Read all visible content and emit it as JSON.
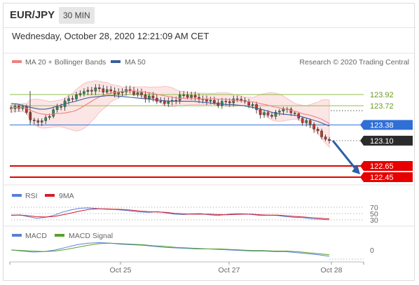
{
  "header": {
    "symbol": "EUR/JPY",
    "timeframe": "30 MIN"
  },
  "datetime": "Wednesday, October 28, 2020 12:21:09 AM CET",
  "credit": "Research © 2020 Trading Central",
  "colors": {
    "up": "#2e8b57",
    "down": "#c0392b",
    "ma20": "#f08080",
    "ma50": "#3a5d9c",
    "resistance_line": "#8fbf4a",
    "pivot": "#2f6fd6",
    "support": "#e60000",
    "arrow": "#2b5fa8",
    "rsi": "#5a7fd6",
    "rsi_ma": "#d81b2a",
    "macd": "#5a7fd6",
    "macd_signal": "#5aa02c"
  },
  "chart_data": [
    {
      "type": "candlestick",
      "panel": "price",
      "legend": [
        "MA 20 + Bollinger Bands",
        "MA 50"
      ],
      "ylim": [
        122.4,
        124.2
      ],
      "x": [
        "Oct 25",
        "Oct 27",
        "Oct 28"
      ],
      "close_path": [
        123.65,
        123.72,
        123.7,
        123.55,
        123.45,
        123.42,
        123.48,
        123.56,
        123.66,
        123.74,
        123.8,
        123.86,
        123.91,
        123.96,
        123.99,
        124.02,
        124.01,
        124.0,
        123.97,
        123.95,
        123.96,
        124.0,
        123.97,
        123.93,
        123.89,
        123.88,
        123.84,
        123.8,
        123.77,
        123.79,
        123.85,
        123.89,
        123.91,
        123.88,
        123.85,
        123.83,
        123.81,
        123.77,
        123.76,
        123.78,
        123.81,
        123.84,
        123.82,
        123.77,
        123.72,
        123.62,
        123.57,
        123.54,
        123.58,
        123.63,
        123.68,
        123.62,
        123.52,
        123.46,
        123.42,
        123.35,
        123.25,
        123.12,
        123.1
      ],
      "ma50_path": [
        123.76,
        123.75,
        123.73,
        123.7,
        123.68,
        123.66,
        123.66,
        123.68,
        123.71,
        123.74,
        123.77,
        123.79,
        123.82,
        123.85,
        123.87,
        123.88,
        123.89,
        123.9,
        123.9,
        123.89,
        123.88,
        123.87,
        123.86,
        123.85,
        123.84,
        123.83,
        123.82,
        123.81,
        123.8,
        123.8,
        123.8,
        123.8,
        123.8,
        123.79,
        123.78,
        123.77,
        123.76,
        123.75,
        123.74,
        123.74,
        123.73,
        123.72,
        123.7,
        123.68,
        123.66,
        123.63,
        123.6,
        123.58,
        123.57,
        123.56,
        123.55,
        123.53,
        123.5,
        123.47,
        123.44,
        123.4,
        123.36
      ],
      "levels": [
        {
          "label": "123.92",
          "value": 123.92,
          "kind": "resistance"
        },
        {
          "label": "123.72",
          "value": 123.72,
          "kind": "resistance"
        },
        {
          "label": "123.38",
          "value": 123.38,
          "kind": "pivot"
        },
        {
          "label": "123.10",
          "value": 123.1,
          "kind": "last"
        },
        {
          "label": "122.65",
          "value": 122.65,
          "kind": "support"
        },
        {
          "label": "122.45",
          "value": 122.45,
          "kind": "support"
        }
      ],
      "arrow": {
        "from": 123.1,
        "to": 122.45,
        "direction": "down"
      }
    },
    {
      "type": "line",
      "panel": "rsi",
      "series": [
        {
          "name": "RSI",
          "values": [
            44,
            46,
            40,
            35,
            38,
            45,
            55,
            62,
            67,
            68,
            66,
            64,
            63,
            61,
            58,
            55,
            54,
            56,
            52,
            48,
            47,
            49,
            50,
            46,
            44,
            47,
            50,
            49,
            47,
            44,
            45,
            44,
            40,
            38,
            37,
            33,
            32,
            30
          ]
        },
        {
          "name": "9MA",
          "values": [
            45,
            45,
            43,
            40,
            39,
            41,
            46,
            52,
            58,
            63,
            65,
            65,
            64,
            63,
            61,
            58,
            56,
            55,
            54,
            51,
            49,
            48,
            48,
            48,
            47,
            46,
            47,
            48,
            48,
            46,
            45,
            45,
            43,
            41,
            39,
            37,
            35,
            33
          ]
        }
      ],
      "ylim": [
        20,
        80
      ],
      "yticks": [
        "70",
        "50",
        "30"
      ]
    },
    {
      "type": "line",
      "panel": "macd",
      "series": [
        {
          "name": "MACD",
          "values": [
            0.0,
            -0.02,
            -0.04,
            -0.03,
            0.0,
            0.05,
            0.1,
            0.13,
            0.14,
            0.13,
            0.11,
            0.1,
            0.09,
            0.07,
            0.05,
            0.04,
            0.03,
            0.02,
            0.02,
            0.01,
            0.0,
            -0.01,
            -0.02,
            -0.02,
            -0.03,
            -0.03,
            -0.05,
            -0.07,
            -0.09,
            -0.12
          ]
        },
        {
          "name": "MACD Signal",
          "values": [
            0.0,
            -0.01,
            -0.02,
            -0.03,
            -0.02,
            0.01,
            0.05,
            0.09,
            0.12,
            0.13,
            0.12,
            0.11,
            0.1,
            0.08,
            0.07,
            0.05,
            0.04,
            0.03,
            0.02,
            0.02,
            0.01,
            0.0,
            -0.01,
            -0.01,
            -0.02,
            -0.02,
            -0.03,
            -0.05,
            -0.07,
            -0.09
          ]
        }
      ],
      "ylim": [
        -0.25,
        0.3
      ],
      "yticks": [
        "0"
      ]
    }
  ]
}
